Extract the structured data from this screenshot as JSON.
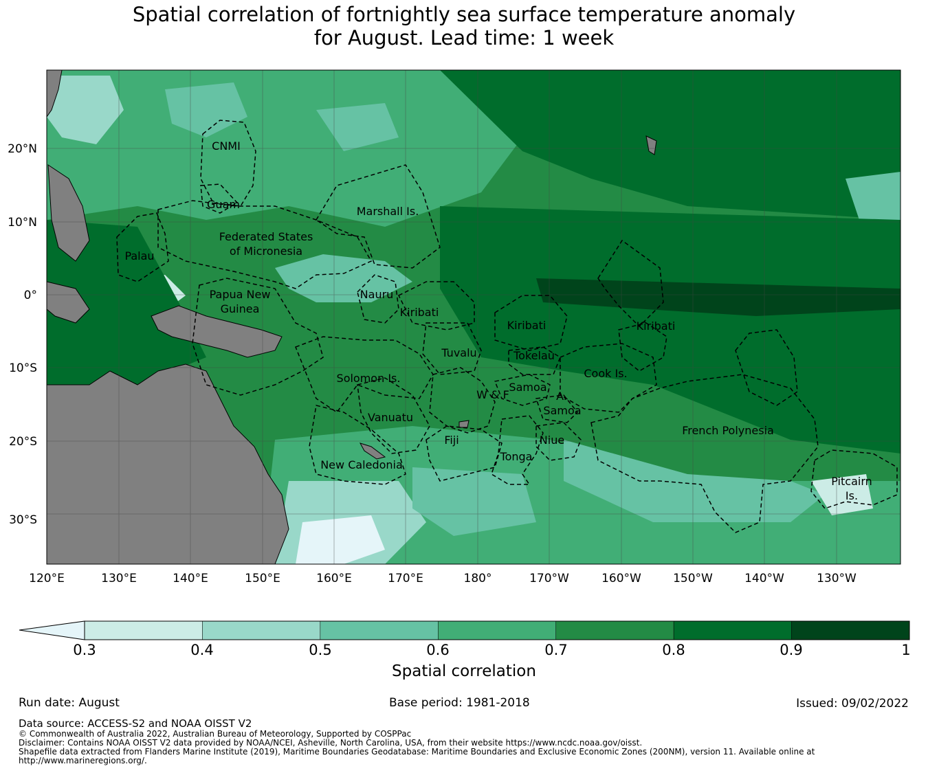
{
  "title_line1": "Spatial correlation of fortnightly sea surface temperature anomaly",
  "title_line2": "for August. Lead time: 1 week",
  "map": {
    "lat_labels": [
      "20°N",
      "10°N",
      "0°",
      "10°S",
      "20°S",
      "30°S"
    ],
    "lon_labels": [
      "120°E",
      "130°E",
      "140°E",
      "150°E",
      "160°E",
      "170°E",
      "180°",
      "170°W",
      "160°W",
      "150°W",
      "140°W",
      "130°W"
    ],
    "regions": [
      "CNMI",
      "Guam",
      "Marshall Is.",
      "Federated States",
      "of Micronesia",
      "Palau",
      "Papua New",
      "Guinea",
      "Nauru",
      "Kiribati",
      "Kiribati",
      "Kiribati",
      "Tuvalu",
      "Tokelau",
      "Solomon Is.",
      "Cook Is.",
      "Samoa",
      "W & F",
      "A.",
      "Samoa",
      "Vanuatu",
      "Fiji",
      "Niue",
      "Tonga",
      "French Polynesia",
      "New Caledonia",
      "Pitcairn",
      "Is."
    ],
    "land_color": "#808080",
    "dominant_correlation": "0.8-0.9"
  },
  "colorbar": {
    "ticks": [
      "0.3",
      "0.4",
      "0.5",
      "0.6",
      "0.7",
      "0.8",
      "0.9",
      "1"
    ],
    "colors": [
      "#ccece6",
      "#99d8c9",
      "#66c2a4",
      "#41ae76",
      "#238b45",
      "#006d2c",
      "#00441b"
    ],
    "extend_color": "#e5f5f9",
    "label": "Spatial correlation"
  },
  "run_date": "Run date: August",
  "base_period": "Base period: 1981-2018",
  "issued": "Issued: 09/02/2022",
  "data_source": "Data source: ACCESS-S2 and NOAA OISST V2",
  "copyright": "© Commonwealth of Australia 2022, Australian Bureau of Meteorology, Supported by COSPPac",
  "disclaimer": "Disclaimer: Contains NOAA OISST V2 data provided by NOAA/NCEI, Asheville, North Carolina, USA, from their website https://www.ncdc.noaa.gov/oisst.",
  "shapefile": "Shapefile data extracted from Flanders Marine Institute (2019), Maritime Boundaries Geodatabase: Maritime Boundaries and Exclusive Economic Zones (200NM), version 11. Available online at http://www.marineregions.org/."
}
